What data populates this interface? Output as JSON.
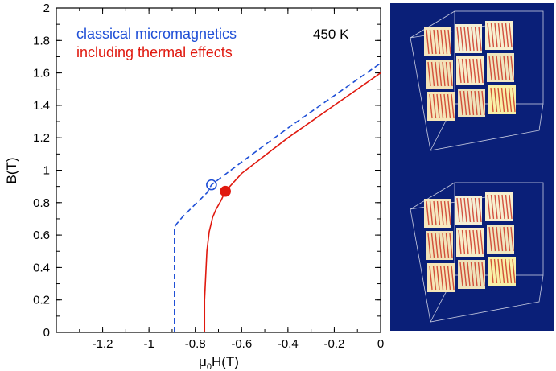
{
  "chart_data": {
    "type": "line",
    "title": "",
    "xlabel": "μ0H(T)",
    "ylabel": "B(T)",
    "xlim": [
      -1.4,
      0
    ],
    "ylim": [
      0,
      2
    ],
    "x_tick_labels": [
      "-1.2",
      "-1",
      "-0.8",
      "-0.6",
      "-0.4",
      "-0.2",
      "0"
    ],
    "x_tick_values": [
      -1.2,
      -1.0,
      -0.8,
      -0.6,
      -0.4,
      -0.2,
      0.0
    ],
    "y_tick_labels": [
      "0",
      "0.2",
      "0.4",
      "0.6",
      "0.8",
      "1",
      "1.2",
      "1.4",
      "1.6",
      "1.8",
      "2"
    ],
    "y_tick_values": [
      0,
      0.2,
      0.4,
      0.6,
      0.8,
      1.0,
      1.2,
      1.4,
      1.6,
      1.8,
      2.0
    ],
    "grid": false,
    "legend_position": "top-left",
    "annotation": "450 K",
    "series": [
      {
        "name": "classical micromagnetics",
        "color": "#1f4fd6",
        "style": "dashed",
        "x": [
          -0.89,
          -0.89,
          -0.88,
          -0.85,
          -0.8,
          -0.75,
          -0.73,
          -0.6,
          -0.4,
          -0.2,
          0.0
        ],
        "y": [
          0.0,
          0.65,
          0.67,
          0.72,
          0.79,
          0.86,
          0.91,
          1.05,
          1.26,
          1.46,
          1.66
        ],
        "marker": {
          "x": -0.73,
          "y": 0.91,
          "style": "open-circle"
        }
      },
      {
        "name": "including thermal effects",
        "color": "#e0190f",
        "style": "solid",
        "x": [
          -0.76,
          -0.76,
          -0.755,
          -0.75,
          -0.74,
          -0.725,
          -0.71,
          -0.69,
          -0.67,
          -0.6,
          -0.4,
          -0.2,
          0.0
        ],
        "y": [
          0.0,
          0.2,
          0.35,
          0.5,
          0.62,
          0.71,
          0.76,
          0.81,
          0.87,
          0.98,
          1.2,
          1.4,
          1.6
        ],
        "marker": {
          "x": -0.67,
          "y": 0.87,
          "style": "filled-circle"
        }
      }
    ]
  },
  "image_panels": {
    "background_color": "#0a1f78",
    "icon": "magnetization-snapshot"
  }
}
